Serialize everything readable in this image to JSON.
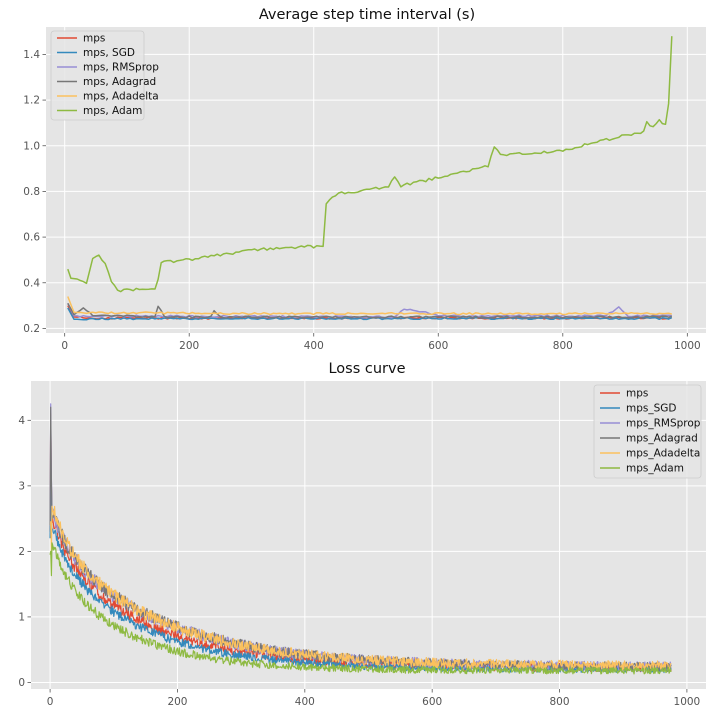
{
  "colors": {
    "panel_bg": "#E5E5E5",
    "grid": "#FFFFFF",
    "series": [
      "#E24A33",
      "#348ABD",
      "#988ED5",
      "#777777",
      "#FBC15E",
      "#8EBA42"
    ]
  },
  "chart_data": [
    {
      "type": "line",
      "title": "Average step time interval (s)",
      "xlabel": "",
      "ylabel": "",
      "xlim": [
        -30,
        1030
      ],
      "ylim": [
        0.18,
        1.52
      ],
      "xticks": [
        0,
        200,
        400,
        600,
        800,
        1000
      ],
      "yticks": [
        0.2,
        0.4,
        0.6,
        0.8,
        1.0,
        1.2,
        1.4
      ],
      "ytick_labels": [
        "0.2",
        "0.4",
        "0.6",
        "0.8",
        "1.0",
        "1.2",
        "1.4"
      ],
      "grid": true,
      "legend_position": "upper-left",
      "x_range": [
        5,
        975
      ],
      "series": [
        {
          "name": "mps",
          "anchors": [
            [
              5,
              0.3
            ],
            [
              15,
              0.25
            ],
            [
              60,
              0.245
            ],
            [
              975,
              0.245
            ]
          ]
        },
        {
          "name": "mps, SGD",
          "anchors": [
            [
              5,
              0.29
            ],
            [
              15,
              0.24
            ],
            [
              60,
              0.243
            ],
            [
              975,
              0.244
            ]
          ]
        },
        {
          "name": "mps, RMSprop",
          "anchors": [
            [
              5,
              0.31
            ],
            [
              15,
              0.255
            ],
            [
              530,
              0.25
            ],
            [
              545,
              0.285
            ],
            [
              580,
              0.27
            ],
            [
              600,
              0.255
            ],
            [
              870,
              0.255
            ],
            [
              890,
              0.295
            ],
            [
              905,
              0.255
            ],
            [
              975,
              0.255
            ]
          ]
        },
        {
          "name": "mps, Adagrad",
          "anchors": [
            [
              5,
              0.31
            ],
            [
              15,
              0.26
            ],
            [
              30,
              0.29
            ],
            [
              45,
              0.26
            ],
            [
              145,
              0.25
            ],
            [
              150,
              0.3
            ],
            [
              160,
              0.25
            ],
            [
              235,
              0.25
            ],
            [
              240,
              0.28
            ],
            [
              250,
              0.25
            ],
            [
              975,
              0.25
            ]
          ]
        },
        {
          "name": "mps, Adadelta",
          "anchors": [
            [
              5,
              0.34
            ],
            [
              15,
              0.27
            ],
            [
              300,
              0.265
            ],
            [
              975,
              0.265
            ]
          ]
        },
        {
          "name": "mps, Adam",
          "anchors": [
            [
              5,
              0.46
            ],
            [
              10,
              0.42
            ],
            [
              25,
              0.415
            ],
            [
              35,
              0.4
            ],
            [
              45,
              0.51
            ],
            [
              55,
              0.525
            ],
            [
              65,
              0.48
            ],
            [
              75,
              0.41
            ],
            [
              85,
              0.365
            ],
            [
              140,
              0.375
            ],
            [
              148,
              0.38
            ],
            [
              155,
              0.49
            ],
            [
              175,
              0.495
            ],
            [
              210,
              0.505
            ],
            [
              270,
              0.53
            ],
            [
              310,
              0.545
            ],
            [
              360,
              0.555
            ],
            [
              415,
              0.56
            ],
            [
              420,
              0.75
            ],
            [
              440,
              0.79
            ],
            [
              520,
              0.82
            ],
            [
              530,
              0.865
            ],
            [
              540,
              0.825
            ],
            [
              600,
              0.86
            ],
            [
              680,
              0.91
            ],
            [
              690,
              1.0
            ],
            [
              700,
              0.96
            ],
            [
              740,
              0.965
            ],
            [
              800,
              0.98
            ],
            [
              860,
              1.02
            ],
            [
              900,
              1.045
            ],
            [
              930,
              1.06
            ],
            [
              935,
              1.1
            ],
            [
              945,
              1.08
            ],
            [
              955,
              1.11
            ],
            [
              965,
              1.09
            ],
            [
              970,
              1.18
            ],
            [
              975,
              1.485
            ]
          ]
        }
      ]
    },
    {
      "type": "line",
      "title": "Loss curve",
      "xlabel": "",
      "ylabel": "",
      "xlim": [
        -30,
        1030
      ],
      "ylim": [
        -0.1,
        4.6
      ],
      "xticks": [
        0,
        200,
        400,
        600,
        800,
        1000
      ],
      "yticks": [
        0,
        1,
        2,
        3,
        4
      ],
      "ytick_labels": [
        "0",
        "1",
        "2",
        "3",
        "4"
      ],
      "grid": true,
      "legend_position": "upper-right",
      "x_range": [
        0,
        975
      ],
      "series": [
        {
          "name": "mps",
          "start": 2.3,
          "peak": 4.1,
          "plateau": 0.22,
          "decay": 150,
          "noise": 0.06
        },
        {
          "name": "mps_SGD",
          "start": 2.2,
          "peak": 3.2,
          "plateau": 0.2,
          "decay": 140,
          "noise": 0.05
        },
        {
          "name": "mps_RMSprop",
          "start": 2.4,
          "peak": 4.25,
          "plateau": 0.24,
          "decay": 170,
          "noise": 0.07
        },
        {
          "name": "mps_Adagrad",
          "start": 2.4,
          "peak": 4.2,
          "plateau": 0.23,
          "decay": 175,
          "noise": 0.07
        },
        {
          "name": "mps_Adadelta",
          "start": 2.45,
          "peak": 2.45,
          "plateau": 0.25,
          "decay": 165,
          "noise": 0.07
        },
        {
          "name": "mps_Adam",
          "start": 1.95,
          "peak": 2.0,
          "plateau": 0.18,
          "decay": 120,
          "noise": 0.05
        }
      ]
    }
  ]
}
